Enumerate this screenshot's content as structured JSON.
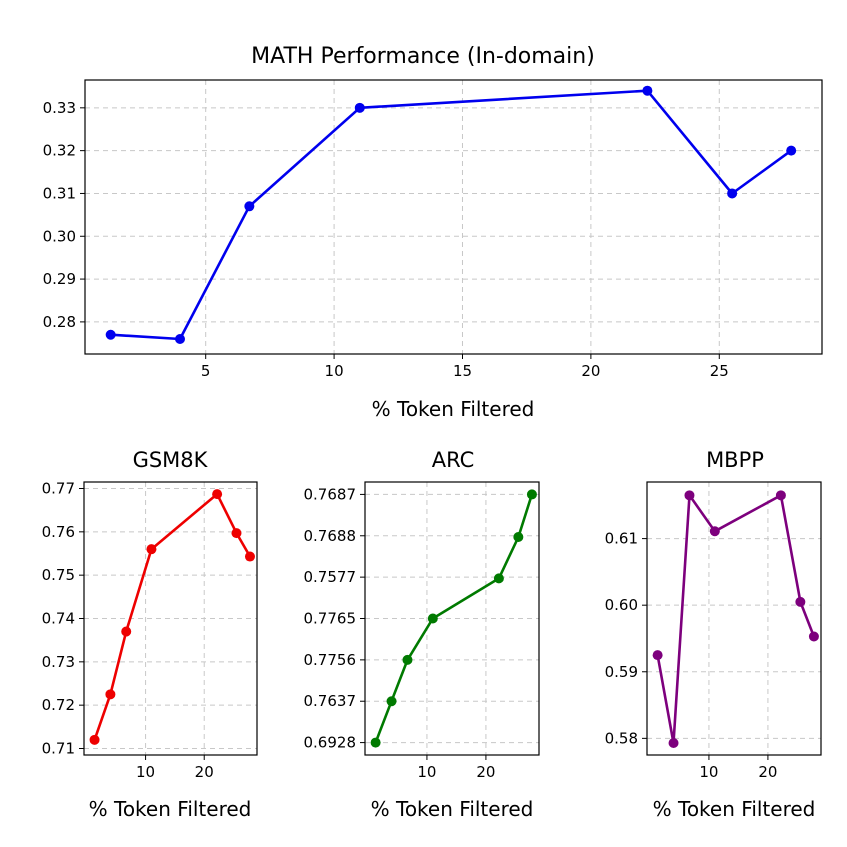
{
  "chart_data": [
    {
      "id": "math",
      "type": "line",
      "title": "MATH Performance (In-domain)",
      "xlabel": "% Token Filtered",
      "ylabel": "",
      "color": "#0000ee",
      "grid": true,
      "xlim": [
        0.3,
        29
      ],
      "ylim": [
        0.2725,
        0.3365
      ],
      "xticks": [
        5,
        10,
        15,
        20,
        25
      ],
      "xtick_labels": [
        "5",
        "10",
        "15",
        "20",
        "25"
      ],
      "yticks": [
        0.28,
        0.29,
        0.3,
        0.31,
        0.32,
        0.33
      ],
      "ytick_labels": [
        "0.28",
        "0.29",
        "0.30",
        "0.31",
        "0.32",
        "0.33"
      ],
      "x": [
        1.3,
        4.0,
        6.7,
        11.0,
        22.2,
        25.5,
        27.8
      ],
      "y": [
        0.277,
        0.276,
        0.307,
        0.33,
        0.334,
        0.31,
        0.32
      ]
    },
    {
      "id": "gsm8k",
      "type": "line",
      "title": "GSM8K",
      "xlabel": "% Token Filtered",
      "ylabel": "",
      "color": "#ee0000",
      "grid": true,
      "xlim": [
        -0.5,
        29
      ],
      "ylim": [
        0.7085,
        0.7715
      ],
      "xticks": [
        10,
        20
      ],
      "xtick_labels": [
        "10",
        "20"
      ],
      "yticks": [
        0.71,
        0.72,
        0.73,
        0.74,
        0.75,
        0.76,
        0.77
      ],
      "ytick_labels": [
        "0.71",
        "0.72",
        "0.73",
        "0.74",
        "0.75",
        "0.76",
        "0.77"
      ],
      "x": [
        1.3,
        4.0,
        6.7,
        11.0,
        22.2,
        25.5,
        27.8
      ],
      "y": [
        0.712,
        0.7225,
        0.737,
        0.756,
        0.7687,
        0.7597,
        0.7543
      ]
    },
    {
      "id": "arc",
      "type": "line",
      "title": "ARC",
      "xlabel": "% Token Filtered",
      "ylabel": "",
      "color": "#007a00",
      "grid": true,
      "xlim": [
        -0.5,
        29
      ],
      "ylim": [
        -0.3,
        6.3
      ],
      "xticks": [
        10,
        20
      ],
      "xtick_labels": [
        "10",
        "20"
      ],
      "yticks": [
        0,
        1,
        2,
        3,
        4,
        5,
        6
      ],
      "ytick_labels": [
        "0.6928",
        "0.7637",
        "0.7756",
        "0.7765",
        "0.7577",
        "0.7688",
        "0.7687"
      ],
      "x": [
        1.3,
        4.0,
        6.7,
        11.0,
        22.2,
        25.5,
        27.8
      ],
      "y": [
        0,
        1,
        2,
        3,
        3.97,
        4.97,
        6
      ]
    },
    {
      "id": "mbpp",
      "type": "line",
      "title": "MBPP",
      "xlabel": "% Token Filtered",
      "ylabel": "",
      "color": "#7d007d",
      "grid": true,
      "xlim": [
        -0.5,
        29
      ],
      "ylim": [
        0.5775,
        0.6185
      ],
      "xticks": [
        10,
        20
      ],
      "xtick_labels": [
        "10",
        "20"
      ],
      "yticks": [
        0.58,
        0.59,
        0.6,
        0.61
      ],
      "ytick_labels": [
        "0.58",
        "0.59",
        "0.60",
        "0.61"
      ],
      "x": [
        1.3,
        4.0,
        6.7,
        11.0,
        22.2,
        25.5,
        27.8
      ],
      "y": [
        0.5925,
        0.5793,
        0.6165,
        0.6111,
        0.6165,
        0.6005,
        0.5953
      ]
    }
  ]
}
